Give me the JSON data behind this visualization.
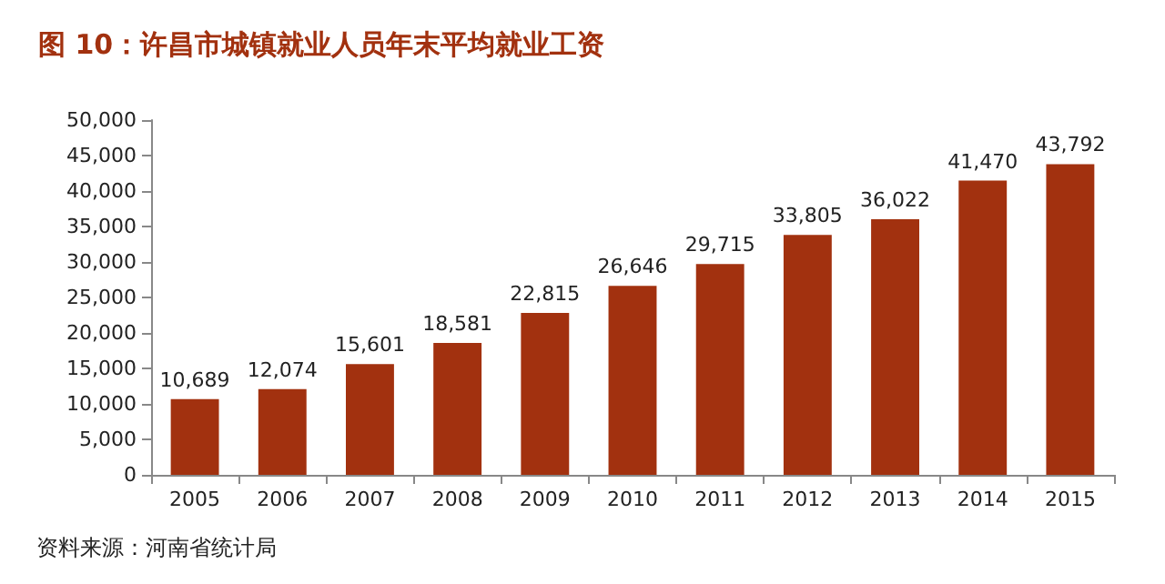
{
  "chart_data": {
    "type": "bar",
    "title": "图 10：许昌市城镇就业人员年末平均就业工资",
    "categories": [
      "2005",
      "2006",
      "2007",
      "2008",
      "2009",
      "2010",
      "2011",
      "2012",
      "2013",
      "2014",
      "2015"
    ],
    "values": [
      10689,
      12074,
      15601,
      18581,
      22815,
      26646,
      29715,
      33805,
      36022,
      41470,
      43792
    ],
    "value_labels": [
      "10,689",
      "12,074",
      "15,601",
      "18,581",
      "22,815",
      "26,646",
      "29,715",
      "33,805",
      "36,022",
      "41,470",
      "43,792"
    ],
    "color": "#a2310f",
    "ylim": [
      0,
      50000
    ],
    "yticks": [
      0,
      {
        "value": 5000,
        "label": "5,000"
      },
      {
        "value": 10000,
        "label": "10,000"
      },
      {
        "value": 15000,
        "label": "15,000"
      },
      {
        "value": 20000,
        "label": "20,000"
      },
      {
        "value": 25000,
        "label": "25,000"
      },
      {
        "value": 30000,
        "label": "30,000"
      },
      {
        "value": 35000,
        "label": "35,000"
      },
      {
        "value": 40000,
        "label": "40,000"
      },
      {
        "value": 45000,
        "label": "45,000"
      },
      {
        "value": 50000,
        "label": "50,000"
      }
    ],
    "grid": false,
    "annotations": [
      "资料来源：河南省统计局"
    ]
  }
}
